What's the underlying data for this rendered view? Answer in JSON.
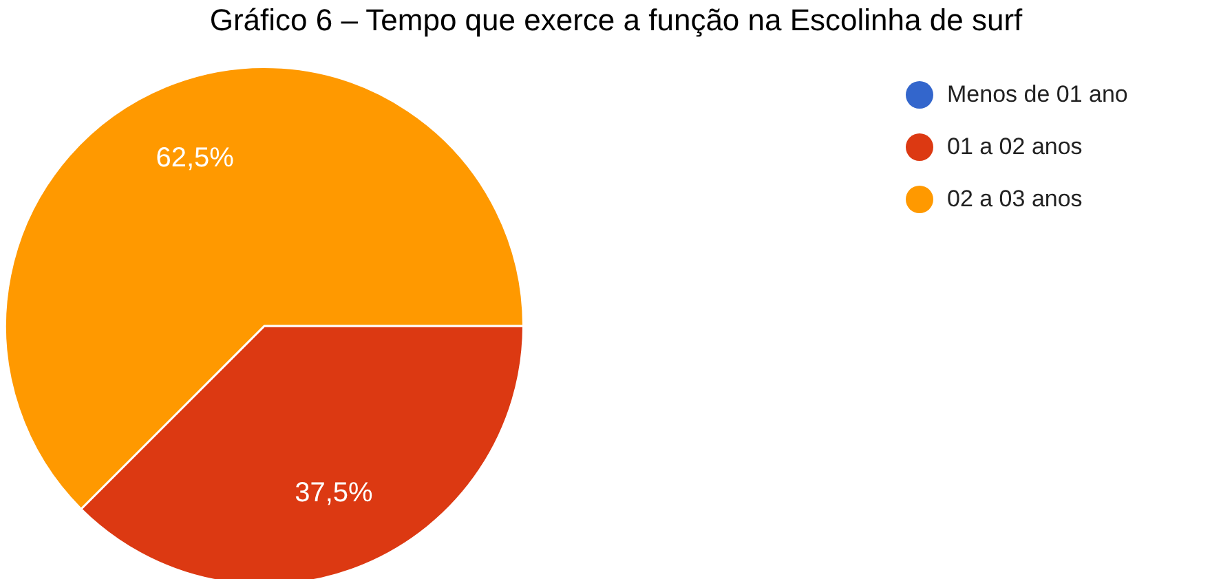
{
  "chart_data": {
    "type": "pie",
    "title": "Gráfico 6 – Tempo que exerce a função na Escolinha de surf",
    "categories": [
      "Menos de 01 ano",
      "01 a 02 anos",
      "02 a 03 anos"
    ],
    "values": [
      0,
      37.5,
      62.5
    ],
    "colors": [
      "#3366cc",
      "#dc3912",
      "#ff9900"
    ],
    "value_labels": [
      null,
      "37,5%",
      "62,5%"
    ],
    "legend": "top right"
  }
}
